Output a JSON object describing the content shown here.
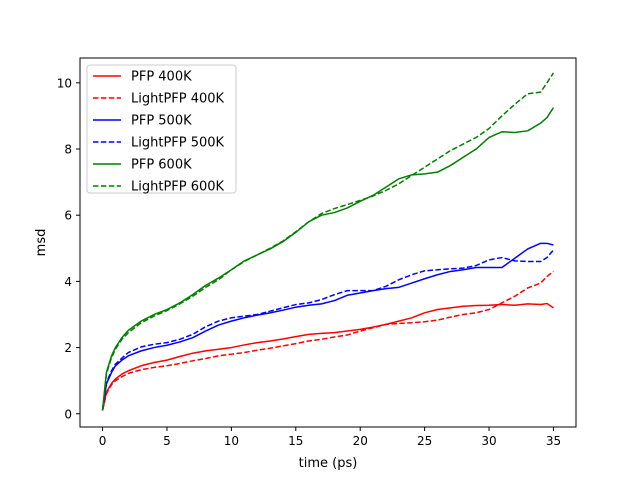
{
  "chart_data": {
    "type": "line",
    "xlabel": "time (ps)",
    "ylabel": "msd",
    "xlim": [
      -1.75,
      36.75
    ],
    "ylim": [
      -0.4,
      10.75
    ],
    "xticks": [
      0,
      5,
      10,
      15,
      20,
      25,
      30,
      35
    ],
    "yticks": [
      0,
      2,
      4,
      6,
      8,
      10
    ],
    "grid": false,
    "legend_position": "top-left",
    "series": [
      {
        "name": "PFP 400K",
        "color": "#ff0000",
        "dash": "solid",
        "x": [
          0,
          0.3,
          0.7,
          1,
          1.5,
          2,
          3,
          4,
          5,
          6,
          7,
          8,
          9,
          10,
          11,
          12,
          13,
          14,
          15,
          16,
          17,
          18,
          19,
          20,
          21,
          22,
          23,
          24,
          25,
          26,
          27,
          28,
          29,
          30,
          31,
          32,
          33,
          34,
          34.5,
          35
        ],
        "values": [
          0.1,
          0.65,
          0.92,
          1.05,
          1.2,
          1.3,
          1.45,
          1.55,
          1.62,
          1.73,
          1.83,
          1.9,
          1.95,
          2.0,
          2.08,
          2.15,
          2.2,
          2.26,
          2.33,
          2.4,
          2.43,
          2.45,
          2.5,
          2.55,
          2.62,
          2.7,
          2.8,
          2.9,
          3.05,
          3.15,
          3.2,
          3.25,
          3.27,
          3.28,
          3.3,
          3.28,
          3.32,
          3.3,
          3.33,
          3.2
        ]
      },
      {
        "name": "LightPFP 400K",
        "color": "#ff0000",
        "dash": "dashed",
        "x": [
          0,
          0.3,
          0.7,
          1,
          1.5,
          2,
          3,
          4,
          5,
          6,
          7,
          8,
          9,
          10,
          11,
          12,
          13,
          14,
          15,
          16,
          17,
          18,
          19,
          20,
          21,
          22,
          23,
          24,
          25,
          26,
          27,
          28,
          29,
          30,
          31,
          32,
          33,
          34,
          34.5,
          35
        ],
        "values": [
          0.1,
          0.6,
          0.88,
          1.0,
          1.12,
          1.22,
          1.33,
          1.4,
          1.45,
          1.52,
          1.6,
          1.67,
          1.75,
          1.8,
          1.85,
          1.92,
          1.98,
          2.05,
          2.12,
          2.2,
          2.25,
          2.32,
          2.38,
          2.5,
          2.6,
          2.7,
          2.73,
          2.75,
          2.78,
          2.83,
          2.92,
          3.0,
          3.05,
          3.15,
          3.35,
          3.55,
          3.8,
          3.95,
          4.15,
          4.3
        ]
      },
      {
        "name": "PFP 500K",
        "color": "#0000ff",
        "dash": "solid",
        "x": [
          0,
          0.3,
          0.7,
          1,
          1.5,
          2,
          3,
          4,
          5,
          6,
          7,
          8,
          9,
          10,
          11,
          12,
          13,
          14,
          15,
          16,
          17,
          18,
          19,
          20,
          21,
          22,
          23,
          24,
          25,
          26,
          27,
          28,
          29,
          30,
          31,
          32,
          33,
          34,
          34.5,
          35
        ],
        "values": [
          0.1,
          0.9,
          1.25,
          1.45,
          1.62,
          1.75,
          1.9,
          2.0,
          2.07,
          2.17,
          2.3,
          2.5,
          2.68,
          2.8,
          2.9,
          2.98,
          3.05,
          3.13,
          3.22,
          3.28,
          3.32,
          3.42,
          3.58,
          3.65,
          3.72,
          3.78,
          3.82,
          3.95,
          4.08,
          4.2,
          4.3,
          4.35,
          4.42,
          4.42,
          4.42,
          4.7,
          4.98,
          5.15,
          5.15,
          5.1
        ]
      },
      {
        "name": "LightPFP 500K",
        "color": "#0000ff",
        "dash": "dashed",
        "x": [
          0,
          0.3,
          0.7,
          1,
          1.5,
          2,
          3,
          4,
          5,
          6,
          7,
          8,
          9,
          10,
          11,
          12,
          13,
          14,
          15,
          16,
          17,
          18,
          19,
          20,
          21,
          22,
          23,
          24,
          25,
          26,
          27,
          28,
          29,
          30,
          31,
          32,
          33,
          34,
          34.5,
          35
        ],
        "values": [
          0.1,
          0.95,
          1.3,
          1.5,
          1.68,
          1.85,
          2.02,
          2.1,
          2.15,
          2.25,
          2.4,
          2.63,
          2.8,
          2.9,
          2.95,
          3.0,
          3.1,
          3.2,
          3.3,
          3.35,
          3.45,
          3.6,
          3.72,
          3.72,
          3.72,
          3.85,
          4.05,
          4.2,
          4.32,
          4.35,
          4.38,
          4.4,
          4.48,
          4.65,
          4.72,
          4.62,
          4.6,
          4.6,
          4.72,
          4.95
        ]
      },
      {
        "name": "PFP 600K",
        "color": "#008000",
        "dash": "solid",
        "x": [
          0,
          0.3,
          0.7,
          1,
          1.5,
          2,
          3,
          4,
          5,
          6,
          7,
          8,
          9,
          10,
          11,
          12,
          13,
          14,
          15,
          16,
          17,
          18,
          19,
          20,
          21,
          22,
          23,
          24,
          25,
          26,
          27,
          28,
          29,
          30,
          31,
          32,
          33,
          34,
          34.5,
          35
        ],
        "values": [
          0.1,
          1.25,
          1.75,
          2.0,
          2.3,
          2.52,
          2.8,
          3.0,
          3.15,
          3.35,
          3.6,
          3.88,
          4.1,
          4.35,
          4.62,
          4.8,
          4.98,
          5.2,
          5.48,
          5.8,
          6.0,
          6.08,
          6.22,
          6.42,
          6.6,
          6.85,
          7.1,
          7.22,
          7.25,
          7.3,
          7.5,
          7.75,
          8.0,
          8.35,
          8.52,
          8.5,
          8.55,
          8.78,
          8.95,
          9.25
        ]
      },
      {
        "name": "LightPFP 600K",
        "color": "#008000",
        "dash": "dashed",
        "x": [
          0,
          0.3,
          0.7,
          1,
          1.5,
          2,
          3,
          4,
          5,
          6,
          7,
          8,
          9,
          10,
          11,
          12,
          13,
          14,
          15,
          16,
          17,
          18,
          19,
          20,
          21,
          22,
          23,
          24,
          25,
          26,
          27,
          28,
          29,
          30,
          31,
          32,
          33,
          34,
          34.5,
          35
        ],
        "values": [
          0.1,
          1.2,
          1.7,
          1.95,
          2.25,
          2.45,
          2.75,
          2.95,
          3.12,
          3.32,
          3.55,
          3.82,
          4.05,
          4.35,
          4.6,
          4.8,
          5.0,
          5.22,
          5.5,
          5.8,
          6.05,
          6.2,
          6.32,
          6.45,
          6.58,
          6.75,
          6.95,
          7.2,
          7.45,
          7.7,
          7.95,
          8.15,
          8.35,
          8.62,
          9.0,
          9.35,
          9.67,
          9.72,
          10.0,
          10.3
        ]
      }
    ]
  }
}
